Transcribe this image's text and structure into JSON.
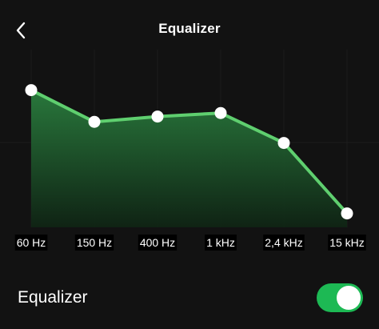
{
  "header": {
    "title": "Equalizer",
    "back_icon": "chevron-left-icon"
  },
  "equalizer": {
    "bands": [
      {
        "label": "60 Hz",
        "level": 0.77
      },
      {
        "label": "150 Hz",
        "level": 0.59
      },
      {
        "label": "400 Hz",
        "level": 0.62
      },
      {
        "label": "1 kHz",
        "level": 0.64
      },
      {
        "label": "2,4 kHz",
        "level": 0.47
      },
      {
        "label": "15 kHz",
        "level": 0.07
      }
    ],
    "line_color": "#5fcf6f",
    "fill_color": "#1f6b34"
  },
  "footer": {
    "toggle_label": "Equalizer",
    "toggle_on": true,
    "toggle_color": "#1db954"
  }
}
